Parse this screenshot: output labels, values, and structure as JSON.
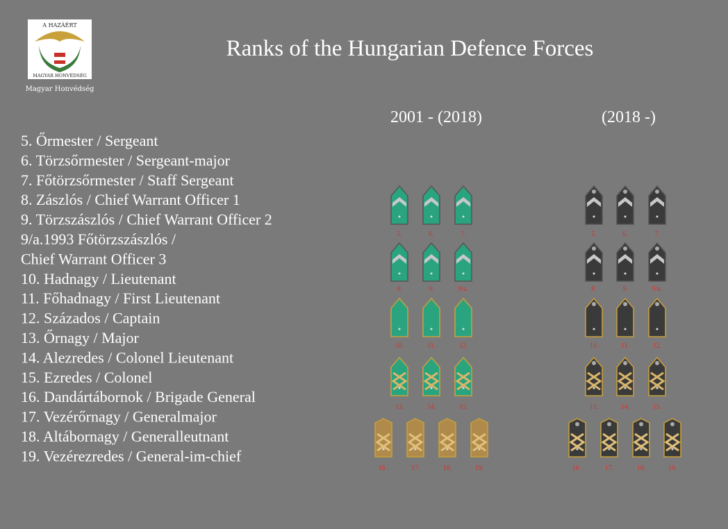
{
  "logo": {
    "top_text": "A HAZÁÉRT",
    "bottom_text": "MAGYAR HONVÉDSÉG",
    "caption": "Magyar Honvédség"
  },
  "title": "Ranks of the Hungarian Defence Forces",
  "ranks": [
    "5. Őrmester / Sergeant",
    "6. Törzsőrmester / Sergeant-major",
    "7. Főtörzsőrmester / Staff Sergeant",
    "8. Zászlós / Chief Warrant Officer 1",
    "9. Törzszászlós / Chief Warrant Officer 2",
    "9/a.1993 Főtörzszászlós /",
    " Chief Warrant Officer 3",
    "10. Hadnagy / Lieutenant",
    "11. Főhadnagy / First Lieutenant",
    "12. Százados / Captain",
    "13. Őrnagy / Major",
    "14. Alezredes / Colonel Lieutenant",
    "15. Ezredes / Colonel",
    "16. Dandártábornok / Brigade General",
    "17. Vezérőrnagy / Generalmajor",
    "18. Altábornagy / Generalleutnant",
    "19. Vezérezredes / General-im-chief"
  ],
  "columns": [
    {
      "heading": "2001 - (2018)",
      "rows": [
        [
          "5.",
          "6.",
          "7."
        ],
        [
          "8.",
          "9.",
          "9/a."
        ],
        [
          "10.",
          "11.",
          "12."
        ],
        [
          "13.",
          "14.",
          "15."
        ],
        [
          "16 .",
          "17.",
          "18.",
          "19."
        ]
      ]
    },
    {
      "heading": "(2018 -)",
      "rows": [
        [
          "5.",
          "6.",
          "7."
        ],
        [
          "8.",
          "9.",
          "9/a."
        ],
        [
          "10.",
          "11.",
          "12."
        ],
        [
          "13.",
          "14.",
          "15."
        ],
        [
          "16 .",
          "17.",
          "18.",
          "19."
        ]
      ]
    }
  ]
}
